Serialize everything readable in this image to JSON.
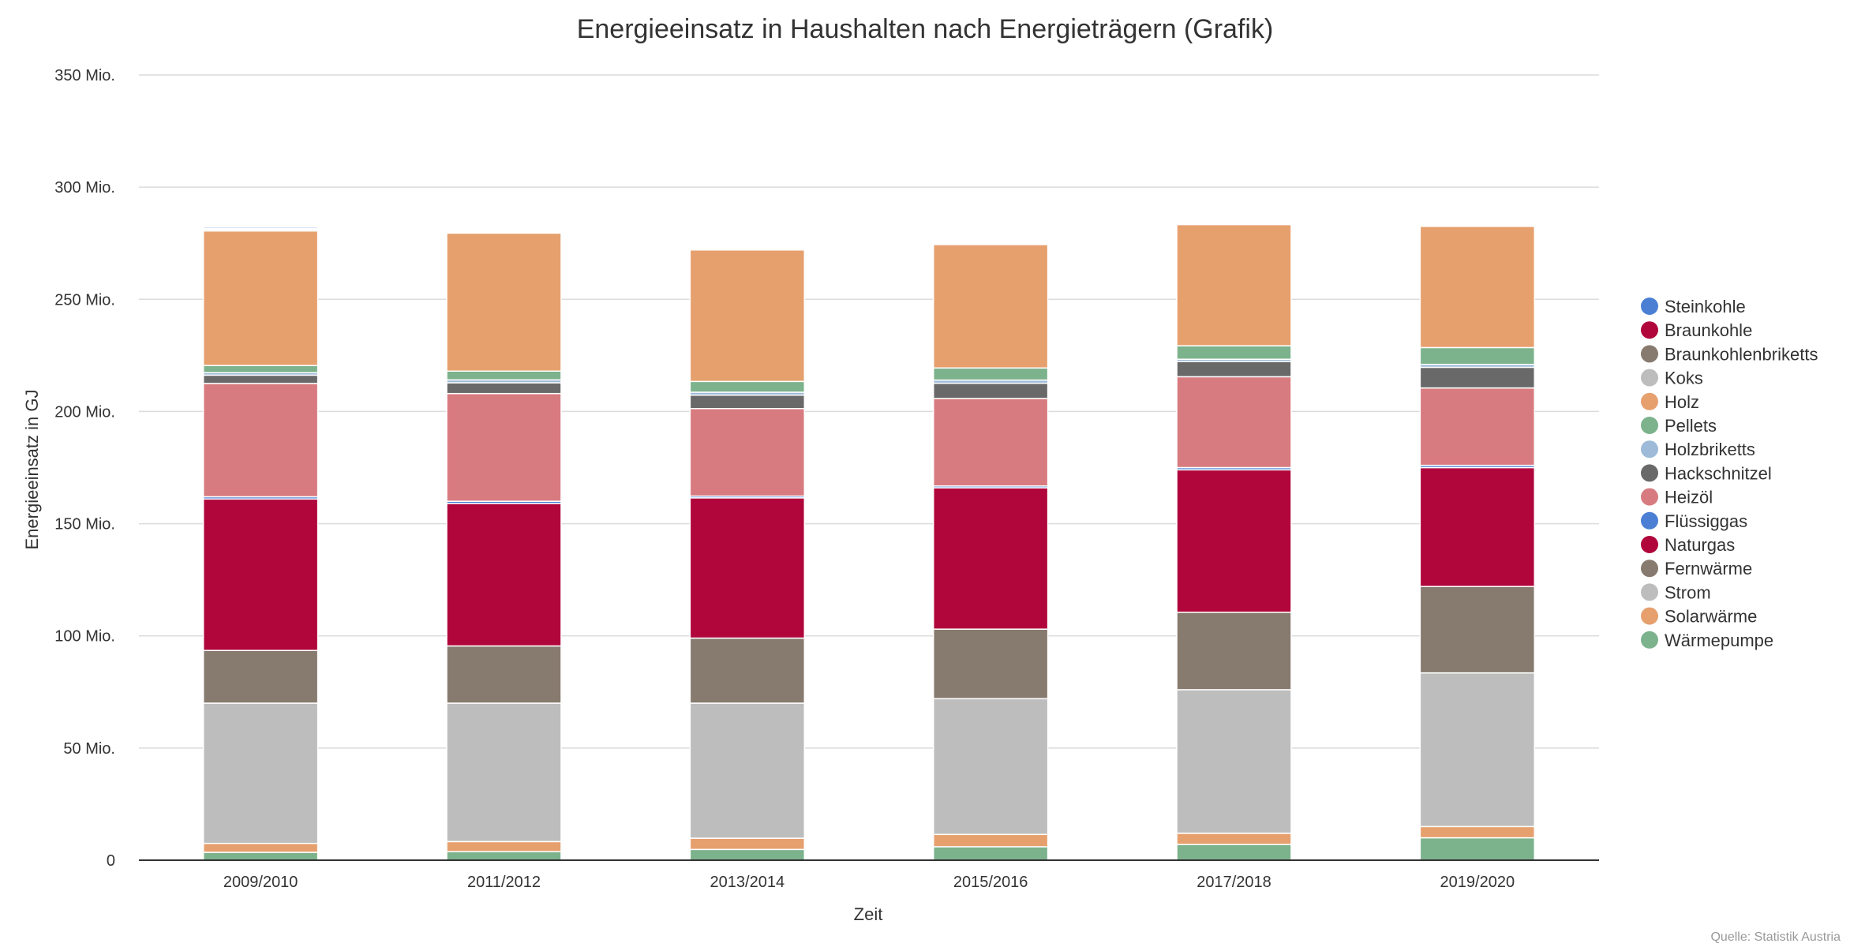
{
  "chart_data": {
    "type": "bar",
    "stacked": true,
    "title": "Energieeinsatz in Haushalten nach Energieträgern (Grafik)",
    "xlabel": "Zeit",
    "ylabel": "Energieeinsatz in GJ",
    "ylim": [
      0,
      350000000
    ],
    "yticks": [
      0,
      50000000,
      100000000,
      150000000,
      200000000,
      250000000,
      300000000,
      350000000
    ],
    "ytick_labels": [
      "0",
      "50 Mio.",
      "100 Mio.",
      "150 Mio.",
      "200 Mio.",
      "250 Mio.",
      "300 Mio.",
      "350 Mio."
    ],
    "grid": true,
    "legend_position": "right",
    "categories": [
      "2009/2010",
      "2011/2012",
      "2013/2014",
      "2015/2016",
      "2017/2018",
      "2019/2020"
    ],
    "series": [
      {
        "name": "Wärmepumpe",
        "color": "#7cb28c",
        "values": [
          3500000,
          3800000,
          4800000,
          6000000,
          7000000,
          10000000
        ]
      },
      {
        "name": "Solarwärme",
        "color": "#e6a06e",
        "values": [
          4000000,
          4500000,
          5000000,
          5500000,
          5000000,
          5000000
        ]
      },
      {
        "name": "Strom",
        "color": "#bdbdbd",
        "values": [
          62500000,
          61700000,
          60200000,
          60500000,
          64000000,
          68500000
        ]
      },
      {
        "name": "Fernwärme",
        "color": "#877a6e",
        "values": [
          23500000,
          25500000,
          29000000,
          31000000,
          34500000,
          38500000
        ]
      },
      {
        "name": "Naturgas",
        "color": "#b0063b",
        "values": [
          67500000,
          63500000,
          62500000,
          63000000,
          63500000,
          53000000
        ]
      },
      {
        "name": "Flüssiggas",
        "color": "#4a7fd4",
        "values": [
          1000000,
          1000000,
          800000,
          800000,
          1000000,
          1000000
        ]
      },
      {
        "name": "Heizöl",
        "color": "#d87b80",
        "values": [
          50500000,
          48000000,
          39000000,
          39000000,
          40500000,
          34500000
        ]
      },
      {
        "name": "Hackschnitzel",
        "color": "#696969",
        "values": [
          3700000,
          4800000,
          6000000,
          6800000,
          6800000,
          9200000
        ]
      },
      {
        "name": "Holzbriketts",
        "color": "#9dbad8",
        "values": [
          1100000,
          1300000,
          1300000,
          1400000,
          1000000,
          1300000
        ]
      },
      {
        "name": "Pellets",
        "color": "#7cb28c",
        "values": [
          3200000,
          3900000,
          4800000,
          5400000,
          6000000,
          7500000
        ]
      },
      {
        "name": "Holz",
        "color": "#e6a06e",
        "values": [
          60000000,
          61500000,
          58600000,
          55000000,
          54000000,
          54000000
        ]
      },
      {
        "name": "Koks",
        "color": "#bdbdbd",
        "values": [
          600000,
          0,
          0,
          0,
          0,
          0
        ]
      },
      {
        "name": "Braunkohlenbriketts",
        "color": "#877a6e",
        "values": [
          400000,
          0,
          0,
          0,
          0,
          0
        ]
      },
      {
        "name": "Braunkohle",
        "color": "#b0063b",
        "values": [
          100000,
          0,
          0,
          0,
          0,
          0
        ]
      },
      {
        "name": "Steinkohle",
        "color": "#4a7fd4",
        "values": [
          600000,
          0,
          0,
          0,
          0,
          0
        ]
      }
    ],
    "legend_order": [
      "Steinkohle",
      "Braunkohle",
      "Braunkohlenbriketts",
      "Koks",
      "Holz",
      "Pellets",
      "Holzbriketts",
      "Hackschnitzel",
      "Heizöl",
      "Flüssiggas",
      "Naturgas",
      "Fernwärme",
      "Strom",
      "Solarwärme",
      "Wärmepumpe"
    ]
  },
  "credit": "Quelle: Statistik Austria"
}
